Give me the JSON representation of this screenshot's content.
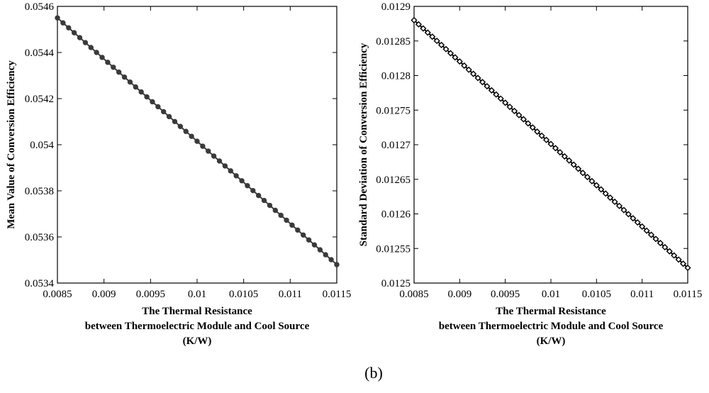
{
  "caption": "(b)",
  "chart_data": [
    {
      "type": "line",
      "xlabel": [
        "The Thermal Resistance",
        "between Thermoelectric Module and Cool Source",
        "(K/W)"
      ],
      "ylabel": "Mean Value of Conversion Efficiency",
      "xlim": [
        0.0085,
        0.0115
      ],
      "ylim": [
        0.0534,
        0.0546
      ],
      "xticks": [
        0.0085,
        0.009,
        0.0095,
        0.01,
        0.0105,
        0.011,
        0.0115
      ],
      "xtick_labels": [
        "0.0085",
        "0.009",
        "0.0095",
        "0.01",
        "0.0105",
        "0.011",
        "0.0115"
      ],
      "yticks": [
        0.0534,
        0.0536,
        0.0538,
        0.054,
        0.0542,
        0.0544,
        0.0546
      ],
      "ytick_labels": [
        "0.0534",
        "0.0536",
        "0.0538",
        "0.054",
        "0.0542",
        "0.0544",
        "0.0546"
      ],
      "marker": "circle",
      "line_color": "#3a3a3a",
      "series": [
        {
          "x_start": 0.0085,
          "x_end": 0.0115,
          "y_start": 0.05455,
          "y_end": 0.05348,
          "points": 51
        }
      ]
    },
    {
      "type": "line",
      "xlabel": [
        "The Thermal Resistance",
        "between Thermoelectric Module and Cool Source",
        "(K/W)"
      ],
      "ylabel": "Standard Deviation of Conversion Efficiency",
      "xlim": [
        0.0085,
        0.0115
      ],
      "ylim": [
        0.0125,
        0.0129
      ],
      "xticks": [
        0.0085,
        0.009,
        0.0095,
        0.01,
        0.0105,
        0.011,
        0.0115
      ],
      "xtick_labels": [
        "0.0085",
        "0.009",
        "0.0095",
        "0.01",
        "0.0105",
        "0.011",
        "0.0115"
      ],
      "yticks": [
        0.0125,
        0.01255,
        0.0126,
        0.01265,
        0.0127,
        0.01275,
        0.0128,
        0.01285,
        0.0129
      ],
      "ytick_labels": [
        "0.0125",
        "0.01255",
        "0.0126",
        "0.01265",
        "0.0127",
        "0.01275",
        "0.0128",
        "0.01285",
        "0.0129"
      ],
      "marker": "diamond",
      "line_color": "#000000",
      "series": [
        {
          "x_start": 0.0085,
          "x_end": 0.0115,
          "y_start": 0.01288,
          "y_end": 0.012522,
          "points": 61
        }
      ]
    }
  ]
}
